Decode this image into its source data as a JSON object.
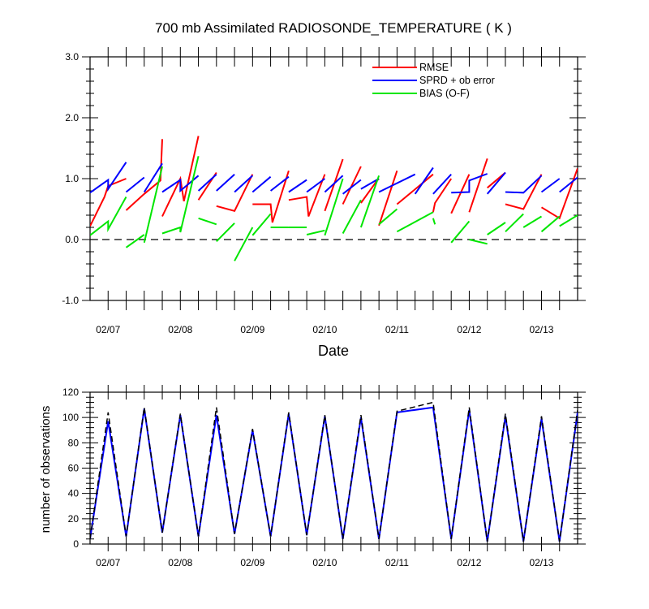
{
  "chart_data": [
    {
      "type": "line",
      "title": "700 mb Assimilated RADIOSONDE_TEMPERATURE ( K )",
      "xlabel": "Date",
      "ylabel": "",
      "ylim": [
        -1.0,
        3.0
      ],
      "yticks": [
        -1.0,
        0.0,
        1.0,
        2.0,
        3.0
      ],
      "ytick_labels": [
        "-1.0",
        "0.0",
        "1.0",
        "2.0",
        "3.0"
      ],
      "x_categories": [
        "02/07",
        "02/08",
        "02/09",
        "02/10",
        "02/11",
        "02/12",
        "02/13"
      ],
      "xlim": [
        0,
        27
      ],
      "x_label_positions": [
        1,
        5,
        9,
        13,
        17,
        21,
        25
      ],
      "legend_position": "top-right",
      "zero_line": "dashed",
      "series": [
        {
          "name": "RMSE",
          "color": "#ff0000",
          "segments": [
            [
              [
                0.0,
                0.22
              ],
              [
                0.8,
                0.7
              ],
              [
                1.0,
                0.88
              ],
              [
                2.0,
                1.0
              ]
            ],
            [
              [
                2.0,
                0.48
              ],
              [
                3.0,
                0.75
              ],
              [
                3.9,
                0.97
              ],
              [
                4.0,
                1.65
              ]
            ],
            [
              [
                4.0,
                0.38
              ],
              [
                5.0,
                1.0
              ],
              [
                5.2,
                0.63
              ],
              [
                6.0,
                1.7
              ]
            ],
            [
              [
                6.0,
                0.65
              ],
              [
                7.0,
                1.1
              ]
            ],
            [
              [
                7.0,
                0.55
              ],
              [
                8.0,
                0.47
              ],
              [
                9.0,
                1.07
              ]
            ],
            [
              [
                9.0,
                0.58
              ],
              [
                10.0,
                0.58
              ],
              [
                10.1,
                0.28
              ],
              [
                11.0,
                1.13
              ]
            ],
            [
              [
                11.0,
                0.65
              ],
              [
                12.0,
                0.7
              ],
              [
                12.1,
                0.38
              ],
              [
                13.0,
                1.07
              ]
            ],
            [
              [
                13.0,
                0.47
              ],
              [
                14.0,
                1.32
              ]
            ],
            [
              [
                14.0,
                0.58
              ],
              [
                15.0,
                1.2
              ]
            ],
            [
              [
                15.0,
                0.6
              ],
              [
                15.9,
                0.97
              ],
              [
                16.0,
                1.0
              ]
            ],
            [
              [
                16.0,
                0.23
              ],
              [
                17.0,
                1.13
              ]
            ],
            [
              [
                17.0,
                0.58
              ],
              [
                19.0,
                1.07
              ]
            ],
            [
              [
                19.0,
                0.45
              ],
              [
                19.1,
                0.6
              ],
              [
                20.0,
                1.0
              ]
            ],
            [
              [
                20.0,
                0.43
              ],
              [
                21.0,
                1.07
              ]
            ],
            [
              [
                21.0,
                0.45
              ],
              [
                22.0,
                1.33
              ]
            ],
            [
              [
                22.0,
                0.85
              ],
              [
                23.0,
                1.1
              ]
            ],
            [
              [
                23.0,
                0.58
              ],
              [
                24.0,
                0.5
              ],
              [
                25.0,
                1.07
              ]
            ],
            [
              [
                25.0,
                0.53
              ],
              [
                26.0,
                0.35
              ],
              [
                27.0,
                1.17
              ]
            ]
          ]
        },
        {
          "name": "SPRD + ob error",
          "color": "#0000ff",
          "segments": [
            [
              [
                0.0,
                0.77
              ],
              [
                1.0,
                0.98
              ],
              [
                1.0,
                0.83
              ],
              [
                2.0,
                1.27
              ]
            ],
            [
              [
                2.0,
                0.78
              ],
              [
                3.0,
                1.02
              ]
            ],
            [
              [
                3.0,
                0.78
              ],
              [
                4.0,
                1.25
              ]
            ],
            [
              [
                4.0,
                0.78
              ],
              [
                5.0,
                0.98
              ],
              [
                5.0,
                0.8
              ],
              [
                6.0,
                1.05
              ]
            ],
            [
              [
                6.0,
                0.8
              ],
              [
                7.0,
                1.07
              ]
            ],
            [
              [
                7.0,
                0.8
              ],
              [
                8.0,
                1.07
              ]
            ],
            [
              [
                8.0,
                0.78
              ],
              [
                9.0,
                1.05
              ]
            ],
            [
              [
                9.0,
                0.78
              ],
              [
                10.0,
                1.03
              ]
            ],
            [
              [
                10.0,
                0.8
              ],
              [
                11.0,
                1.03
              ]
            ],
            [
              [
                11.0,
                0.78
              ],
              [
                12.0,
                0.98
              ]
            ],
            [
              [
                12.0,
                0.78
              ],
              [
                13.0,
                1.0
              ]
            ],
            [
              [
                13.0,
                0.78
              ],
              [
                14.0,
                1.05
              ]
            ],
            [
              [
                14.0,
                0.75
              ],
              [
                15.0,
                0.98
              ]
            ],
            [
              [
                15.0,
                0.83
              ],
              [
                16.0,
                1.0
              ]
            ],
            [
              [
                16.0,
                0.78
              ],
              [
                18.0,
                1.07
              ]
            ],
            [
              [
                18.0,
                0.75
              ],
              [
                19.0,
                1.18
              ]
            ],
            [
              [
                19.0,
                0.75
              ],
              [
                20.0,
                1.07
              ]
            ],
            [
              [
                20.0,
                0.77
              ],
              [
                21.0,
                0.78
              ],
              [
                21.0,
                0.97
              ],
              [
                22.0,
                1.08
              ]
            ],
            [
              [
                22.0,
                0.75
              ],
              [
                23.0,
                1.1
              ]
            ],
            [
              [
                23.0,
                0.78
              ],
              [
                24.0,
                0.77
              ],
              [
                25.0,
                1.05
              ]
            ],
            [
              [
                25.0,
                0.78
              ],
              [
                26.0,
                1.0
              ]
            ],
            [
              [
                26.0,
                0.78
              ],
              [
                27.0,
                1.02
              ]
            ]
          ]
        },
        {
          "name": "BIAS (O-F)",
          "color": "#00e600",
          "segments": [
            [
              [
                0.0,
                0.07
              ],
              [
                1.0,
                0.3
              ],
              [
                1.0,
                0.17
              ],
              [
                2.0,
                0.7
              ]
            ],
            [
              [
                2.0,
                -0.13
              ],
              [
                3.0,
                0.08
              ]
            ],
            [
              [
                3.0,
                -0.05
              ],
              [
                4.0,
                1.2
              ]
            ],
            [
              [
                4.0,
                0.1
              ],
              [
                5.0,
                0.2
              ],
              [
                5.0,
                0.12
              ],
              [
                6.0,
                1.37
              ]
            ],
            [
              [
                6.0,
                0.35
              ],
              [
                7.0,
                0.25
              ]
            ],
            [
              [
                7.0,
                -0.03
              ],
              [
                8.0,
                0.27
              ]
            ],
            [
              [
                8.0,
                -0.35
              ],
              [
                9.0,
                0.2
              ]
            ],
            [
              [
                9.0,
                0.07
              ],
              [
                10.0,
                0.42
              ]
            ],
            [
              [
                10.0,
                0.2
              ],
              [
                11.0,
                0.2
              ]
            ],
            [
              [
                11.0,
                0.2
              ],
              [
                12.0,
                0.2
              ]
            ],
            [
              [
                12.0,
                0.08
              ],
              [
                13.0,
                0.15
              ]
            ],
            [
              [
                13.0,
                0.07
              ],
              [
                14.0,
                1.0
              ]
            ],
            [
              [
                14.0,
                0.1
              ],
              [
                15.0,
                0.65
              ]
            ],
            [
              [
                15.0,
                0.2
              ],
              [
                16.0,
                1.05
              ]
            ],
            [
              [
                16.0,
                0.25
              ],
              [
                17.0,
                0.5
              ]
            ],
            [
              [
                17.0,
                0.13
              ],
              [
                19.0,
                0.45
              ]
            ],
            [
              [
                19.0,
                0.35
              ],
              [
                19.1,
                0.25
              ]
            ],
            [
              [
                20.0,
                -0.05
              ],
              [
                21.0,
                0.3
              ]
            ],
            [
              [
                21.0,
                0.0
              ],
              [
                22.0,
                -0.07
              ]
            ],
            [
              [
                22.0,
                0.08
              ],
              [
                23.0,
                0.28
              ]
            ],
            [
              [
                23.0,
                0.13
              ],
              [
                24.0,
                0.42
              ]
            ],
            [
              [
                24.0,
                0.2
              ],
              [
                25.0,
                0.38
              ]
            ],
            [
              [
                25.0,
                0.13
              ],
              [
                26.0,
                0.38
              ]
            ],
            [
              [
                26.0,
                0.22
              ],
              [
                27.0,
                0.4
              ]
            ]
          ]
        }
      ]
    },
    {
      "type": "line",
      "title": "",
      "xlabel": "",
      "ylabel": "number of observations",
      "ylim": [
        0,
        120
      ],
      "yticks": [
        0,
        20,
        40,
        60,
        80,
        100,
        120
      ],
      "ytick_labels": [
        "0",
        "20",
        "40",
        "60",
        "80",
        "100",
        "120"
      ],
      "x_categories": [
        "02/07",
        "02/08",
        "02/09",
        "02/10",
        "02/11",
        "02/12",
        "02/13"
      ],
      "xlim": [
        0,
        27
      ],
      "x_label_positions": [
        1,
        5,
        9,
        13,
        17,
        21,
        25
      ],
      "series": [
        {
          "name": "",
          "color": "#0000ff",
          "style": "solid",
          "segments": [
            [
              [
                0,
                4
              ],
              [
                1,
                97
              ],
              [
                2,
                6
              ],
              [
                3,
                107
              ],
              [
                4,
                9
              ],
              [
                5,
                102
              ],
              [
                6,
                6
              ],
              [
                7,
                102
              ],
              [
                8,
                8
              ],
              [
                9,
                90
              ],
              [
                10,
                6
              ],
              [
                11,
                103
              ],
              [
                12,
                7
              ],
              [
                13,
                101
              ],
              [
                14,
                4
              ],
              [
                15,
                100
              ],
              [
                16,
                4
              ],
              [
                17,
                104
              ],
              [
                19,
                108
              ],
              [
                20,
                4
              ],
              [
                21,
                106
              ],
              [
                22,
                2
              ],
              [
                23,
                101
              ],
              [
                24,
                2
              ],
              [
                25,
                99
              ],
              [
                26,
                2
              ],
              [
                27,
                104
              ]
            ]
          ]
        },
        {
          "name": "",
          "color": "#000000",
          "style": "dashed",
          "segments": [
            [
              [
                0,
                4
              ],
              [
                1,
                104
              ],
              [
                2,
                6
              ],
              [
                3,
                108
              ],
              [
                4,
                9
              ],
              [
                5,
                103
              ],
              [
                6,
                6
              ],
              [
                7,
                108
              ],
              [
                8,
                8
              ],
              [
                9,
                91
              ],
              [
                10,
                6
              ],
              [
                11,
                104
              ],
              [
                12,
                7
              ],
              [
                13,
                102
              ],
              [
                14,
                4
              ],
              [
                15,
                102
              ],
              [
                16,
                4
              ],
              [
                17,
                105
              ],
              [
                19,
                112
              ],
              [
                20,
                4
              ],
              [
                21,
                108
              ],
              [
                22,
                2
              ],
              [
                23,
                103
              ],
              [
                24,
                2
              ],
              [
                25,
                101
              ],
              [
                26,
                2
              ],
              [
                27,
                106
              ]
            ]
          ]
        }
      ]
    }
  ]
}
